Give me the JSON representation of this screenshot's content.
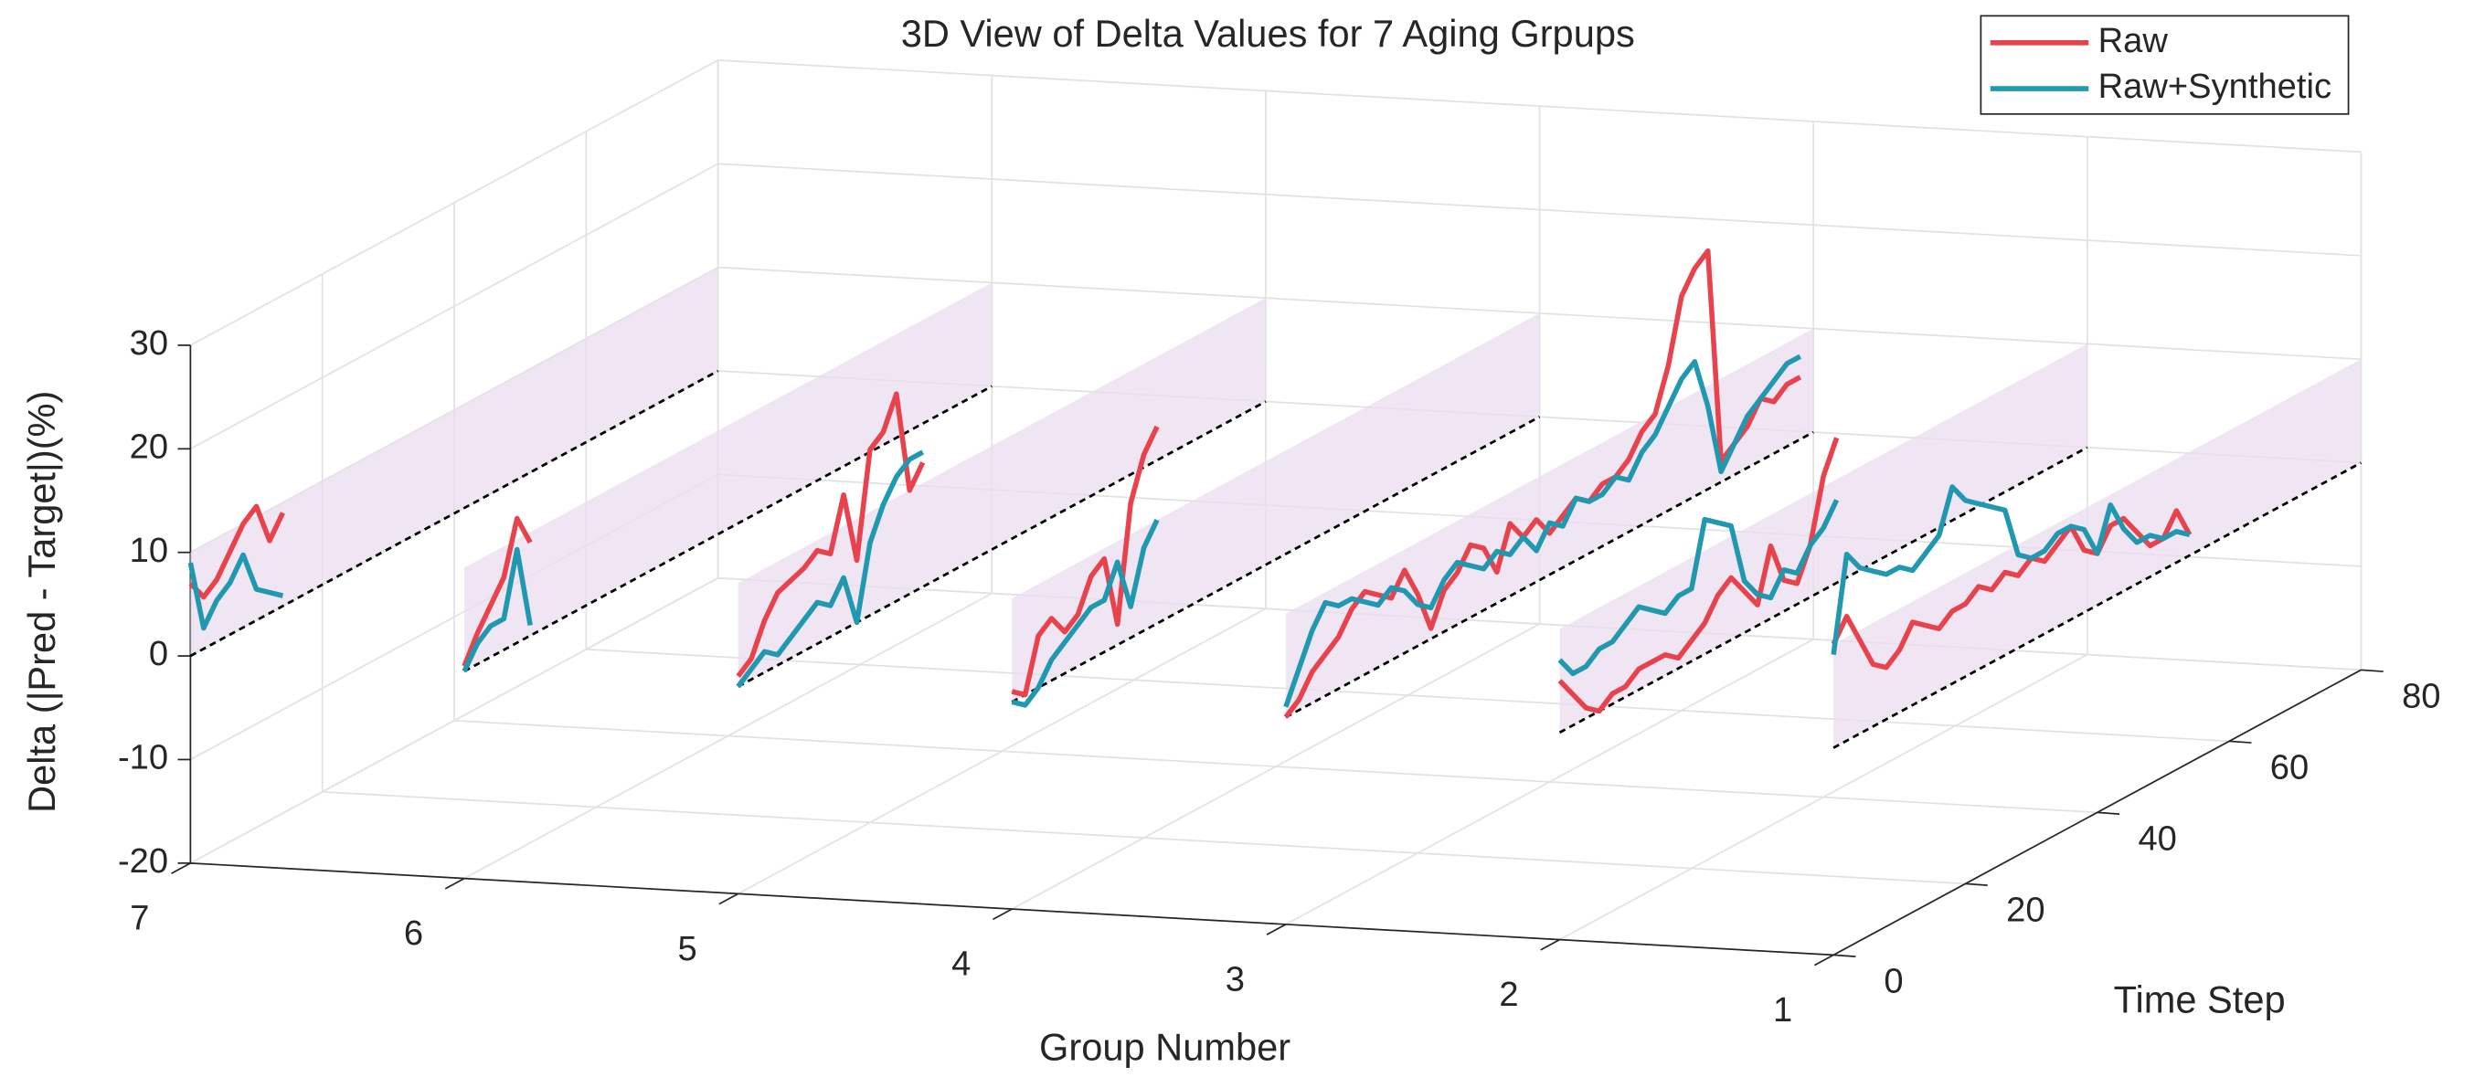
{
  "chart_data": {
    "type": "line3d",
    "title": "3D View of Delta Values for 7 Aging Grpups",
    "xlabel": "Group Number",
    "ylabel": "Time Step",
    "zlabel": "Delta (|Pred - Target|)(%)",
    "groups": [
      7,
      6,
      5,
      4,
      3,
      2,
      1
    ],
    "xlim": [
      1,
      7
    ],
    "xdir": "reverse",
    "xticks": [
      1,
      2,
      3,
      4,
      5,
      6,
      7
    ],
    "ylim": [
      0,
      80
    ],
    "yticks": [
      0,
      20,
      40,
      60,
      80
    ],
    "zlim": [
      -20,
      30
    ],
    "zticks": [
      -20,
      -10,
      0,
      10,
      20,
      30
    ],
    "band": [
      0,
      10
    ],
    "band_color": "#e9dcef",
    "grid": true,
    "legend": "northeast",
    "x": [
      [
        0,
        2,
        4,
        6,
        8,
        10,
        12,
        14
      ],
      [
        0,
        2,
        4,
        6,
        8,
        10
      ],
      [
        0,
        2,
        4,
        6,
        8,
        10,
        12,
        14,
        16,
        18,
        20,
        22,
        24,
        26,
        28
      ],
      [
        0,
        2,
        4,
        6,
        8,
        10,
        12,
        14,
        16,
        18,
        20,
        22
      ],
      [
        0,
        2,
        4,
        6,
        8,
        10,
        12,
        14,
        16,
        18,
        20,
        22,
        24,
        26,
        28,
        30,
        32,
        34,
        36,
        38,
        40,
        42,
        44,
        46,
        48,
        50,
        52,
        54,
        56,
        58,
        60,
        62,
        64,
        66,
        68,
        70,
        72,
        74,
        76,
        78
      ],
      [
        0,
        2,
        4,
        6,
        8,
        10,
        12,
        14,
        16,
        18,
        20,
        22,
        24,
        26,
        28,
        30,
        32,
        34,
        36,
        38,
        40,
        42
      ],
      [
        0,
        2,
        4,
        6,
        8,
        10,
        12,
        14,
        16,
        18,
        20,
        22,
        24,
        26,
        28,
        30,
        32,
        34,
        36,
        38,
        40,
        42,
        44,
        46,
        48,
        50,
        52,
        54
      ]
    ],
    "series": [
      {
        "name": "Raw",
        "color": "#e8434d",
        "values": [
          [
            7,
            5,
            6,
            8,
            10,
            11,
            7,
            9
          ],
          [
            0.5,
            3,
            5,
            7,
            12,
            9
          ],
          [
            1,
            2,
            5,
            7,
            7.5,
            8,
            9,
            8,
            13,
            6,
            16,
            17,
            20,
            10,
            12
          ],
          [
            1,
            0,
            5,
            6,
            4,
            5,
            8,
            9,
            2,
            13,
            17,
            19
          ],
          [
            0,
            1,
            3,
            4,
            5,
            7,
            8,
            7,
            6,
            8,
            5,
            1,
            4,
            5,
            7,
            6,
            3,
            7,
            5,
            6,
            4,
            5,
            6,
            5,
            6,
            6,
            7,
            9,
            10,
            14,
            20,
            22,
            23,
            2,
            3,
            4,
            6,
            5,
            6,
            6
          ],
          [
            5,
            3,
            1,
            0,
            1,
            1,
            2,
            2,
            2,
            1,
            2,
            3,
            5,
            6,
            4,
            2,
            7,
            3,
            2,
            5,
            11,
            14
          ],
          [
            10,
            12,
            9,
            6,
            5,
            6,
            8,
            7,
            6,
            7,
            7,
            8,
            7,
            8,
            7,
            8,
            7,
            8,
            9,
            6,
            5,
            7,
            7,
            5,
            3,
            3,
            5,
            2
          ]
        ]
      },
      {
        "name": "Raw+Synthetic",
        "color": "#1f98b0",
        "values": [
          [
            9,
            2,
            4,
            5,
            7,
            3,
            2,
            1
          ],
          [
            0,
            2,
            3,
            3,
            9,
            1
          ],
          [
            0,
            1,
            2,
            1,
            2,
            3,
            4,
            3,
            5,
            0,
            7,
            10,
            12,
            13,
            13
          ],
          [
            0,
            -1,
            0,
            2,
            3,
            4,
            5,
            5,
            8,
            3,
            8,
            10
          ],
          [
            1,
            4,
            7,
            9,
            8,
            8,
            7,
            6,
            7,
            6,
            4,
            3,
            5,
            6,
            5,
            4,
            5,
            4,
            5,
            3,
            5,
            4,
            6,
            5,
            5,
            6,
            5,
            7,
            8,
            10,
            12,
            13,
            8,
            1,
            3,
            5,
            6,
            7,
            8,
            8
          ],
          [
            7,
            5,
            5,
            6,
            6,
            7,
            8,
            7,
            6,
            7,
            7,
            13,
            12,
            11,
            5,
            3,
            2,
            4,
            3,
            5,
            6,
            8
          ],
          [
            9,
            18,
            16,
            15,
            14,
            14,
            13,
            14,
            15,
            19,
            17,
            16,
            15,
            14,
            9,
            8,
            8,
            9,
            9,
            8,
            5,
            9,
            6,
            4,
            4,
            3,
            3,
            2
          ]
        ]
      }
    ]
  }
}
